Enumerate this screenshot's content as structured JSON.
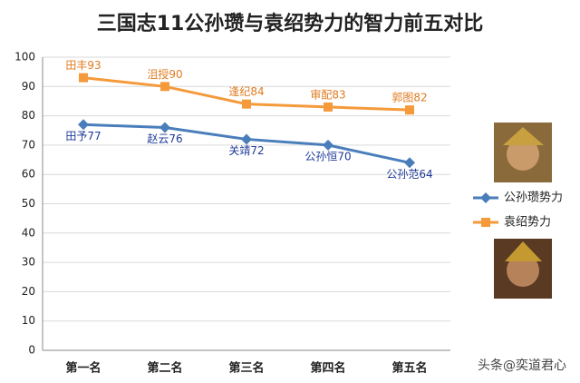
{
  "chart_data": {
    "type": "line",
    "title": "三国志11公孙瓒与袁绍势力的智力前五对比",
    "categories": [
      "第一名",
      "第二名",
      "第三名",
      "第四名",
      "第五名"
    ],
    "series": [
      {
        "name": "公孙瓒势力",
        "color": "#4a7ebb",
        "marker": "diamond",
        "values": [
          77,
          76,
          72,
          70,
          64
        ],
        "value_labels": [
          "田予77",
          "赵云76",
          "关靖72",
          "公孙恒70",
          "公孙范64"
        ]
      },
      {
        "name": "袁绍势力",
        "color": "#f59a3b",
        "marker": "square",
        "values": [
          93,
          90,
          84,
          83,
          82
        ],
        "value_labels": [
          "田丰93",
          "沮授90",
          "逢纪84",
          "审配83",
          "郭图82"
        ]
      }
    ],
    "ylim": [
      0,
      100
    ],
    "yticks": [
      0,
      10,
      20,
      30,
      40,
      50,
      60,
      70,
      80,
      90,
      100
    ],
    "grid": true,
    "legend": "right",
    "watermark": "头条@奕道君心"
  }
}
